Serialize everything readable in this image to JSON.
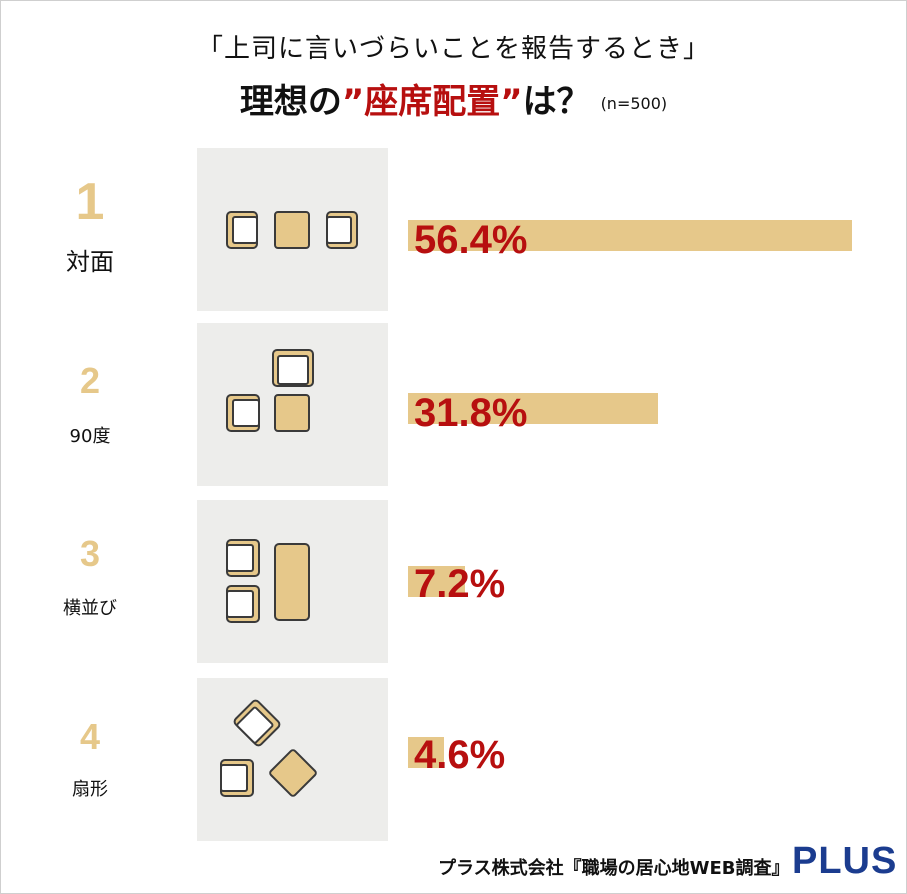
{
  "header": {
    "subtitle": "「上司に言いづらいことを報告するとき」",
    "title_prefix": "理想の",
    "title_highlight": "”座席配置”",
    "title_suffix": "は？",
    "sample": "(n=500)"
  },
  "chart_data": {
    "type": "bar",
    "orientation": "horizontal",
    "categories": [
      "対面",
      "90度",
      "横並び",
      "扇形"
    ],
    "values": [
      56.4,
      31.8,
      7.2,
      4.6
    ],
    "value_labels": [
      "56.4%",
      "31.8%",
      "7.2%",
      "4.6%"
    ],
    "ranks": [
      "1",
      "2",
      "3",
      "4"
    ],
    "unit": "%",
    "xlim": [
      0,
      56.4
    ],
    "grid": false,
    "legend": "none",
    "colors": {
      "bar": "#e6c88a",
      "value_text": "#b70f0f",
      "rank": "#e6c88a",
      "icon_bg": "#ededeb"
    }
  },
  "icons": [
    "face-to-face-seating-icon",
    "ninety-degree-seating-icon",
    "side-by-side-seating-icon",
    "fan-shape-seating-icon"
  ],
  "footer": {
    "source": "プラス株式会社『職場の居心地WEB調査』",
    "logo": "PLUS",
    "logo_color": "#1b3c8f"
  }
}
